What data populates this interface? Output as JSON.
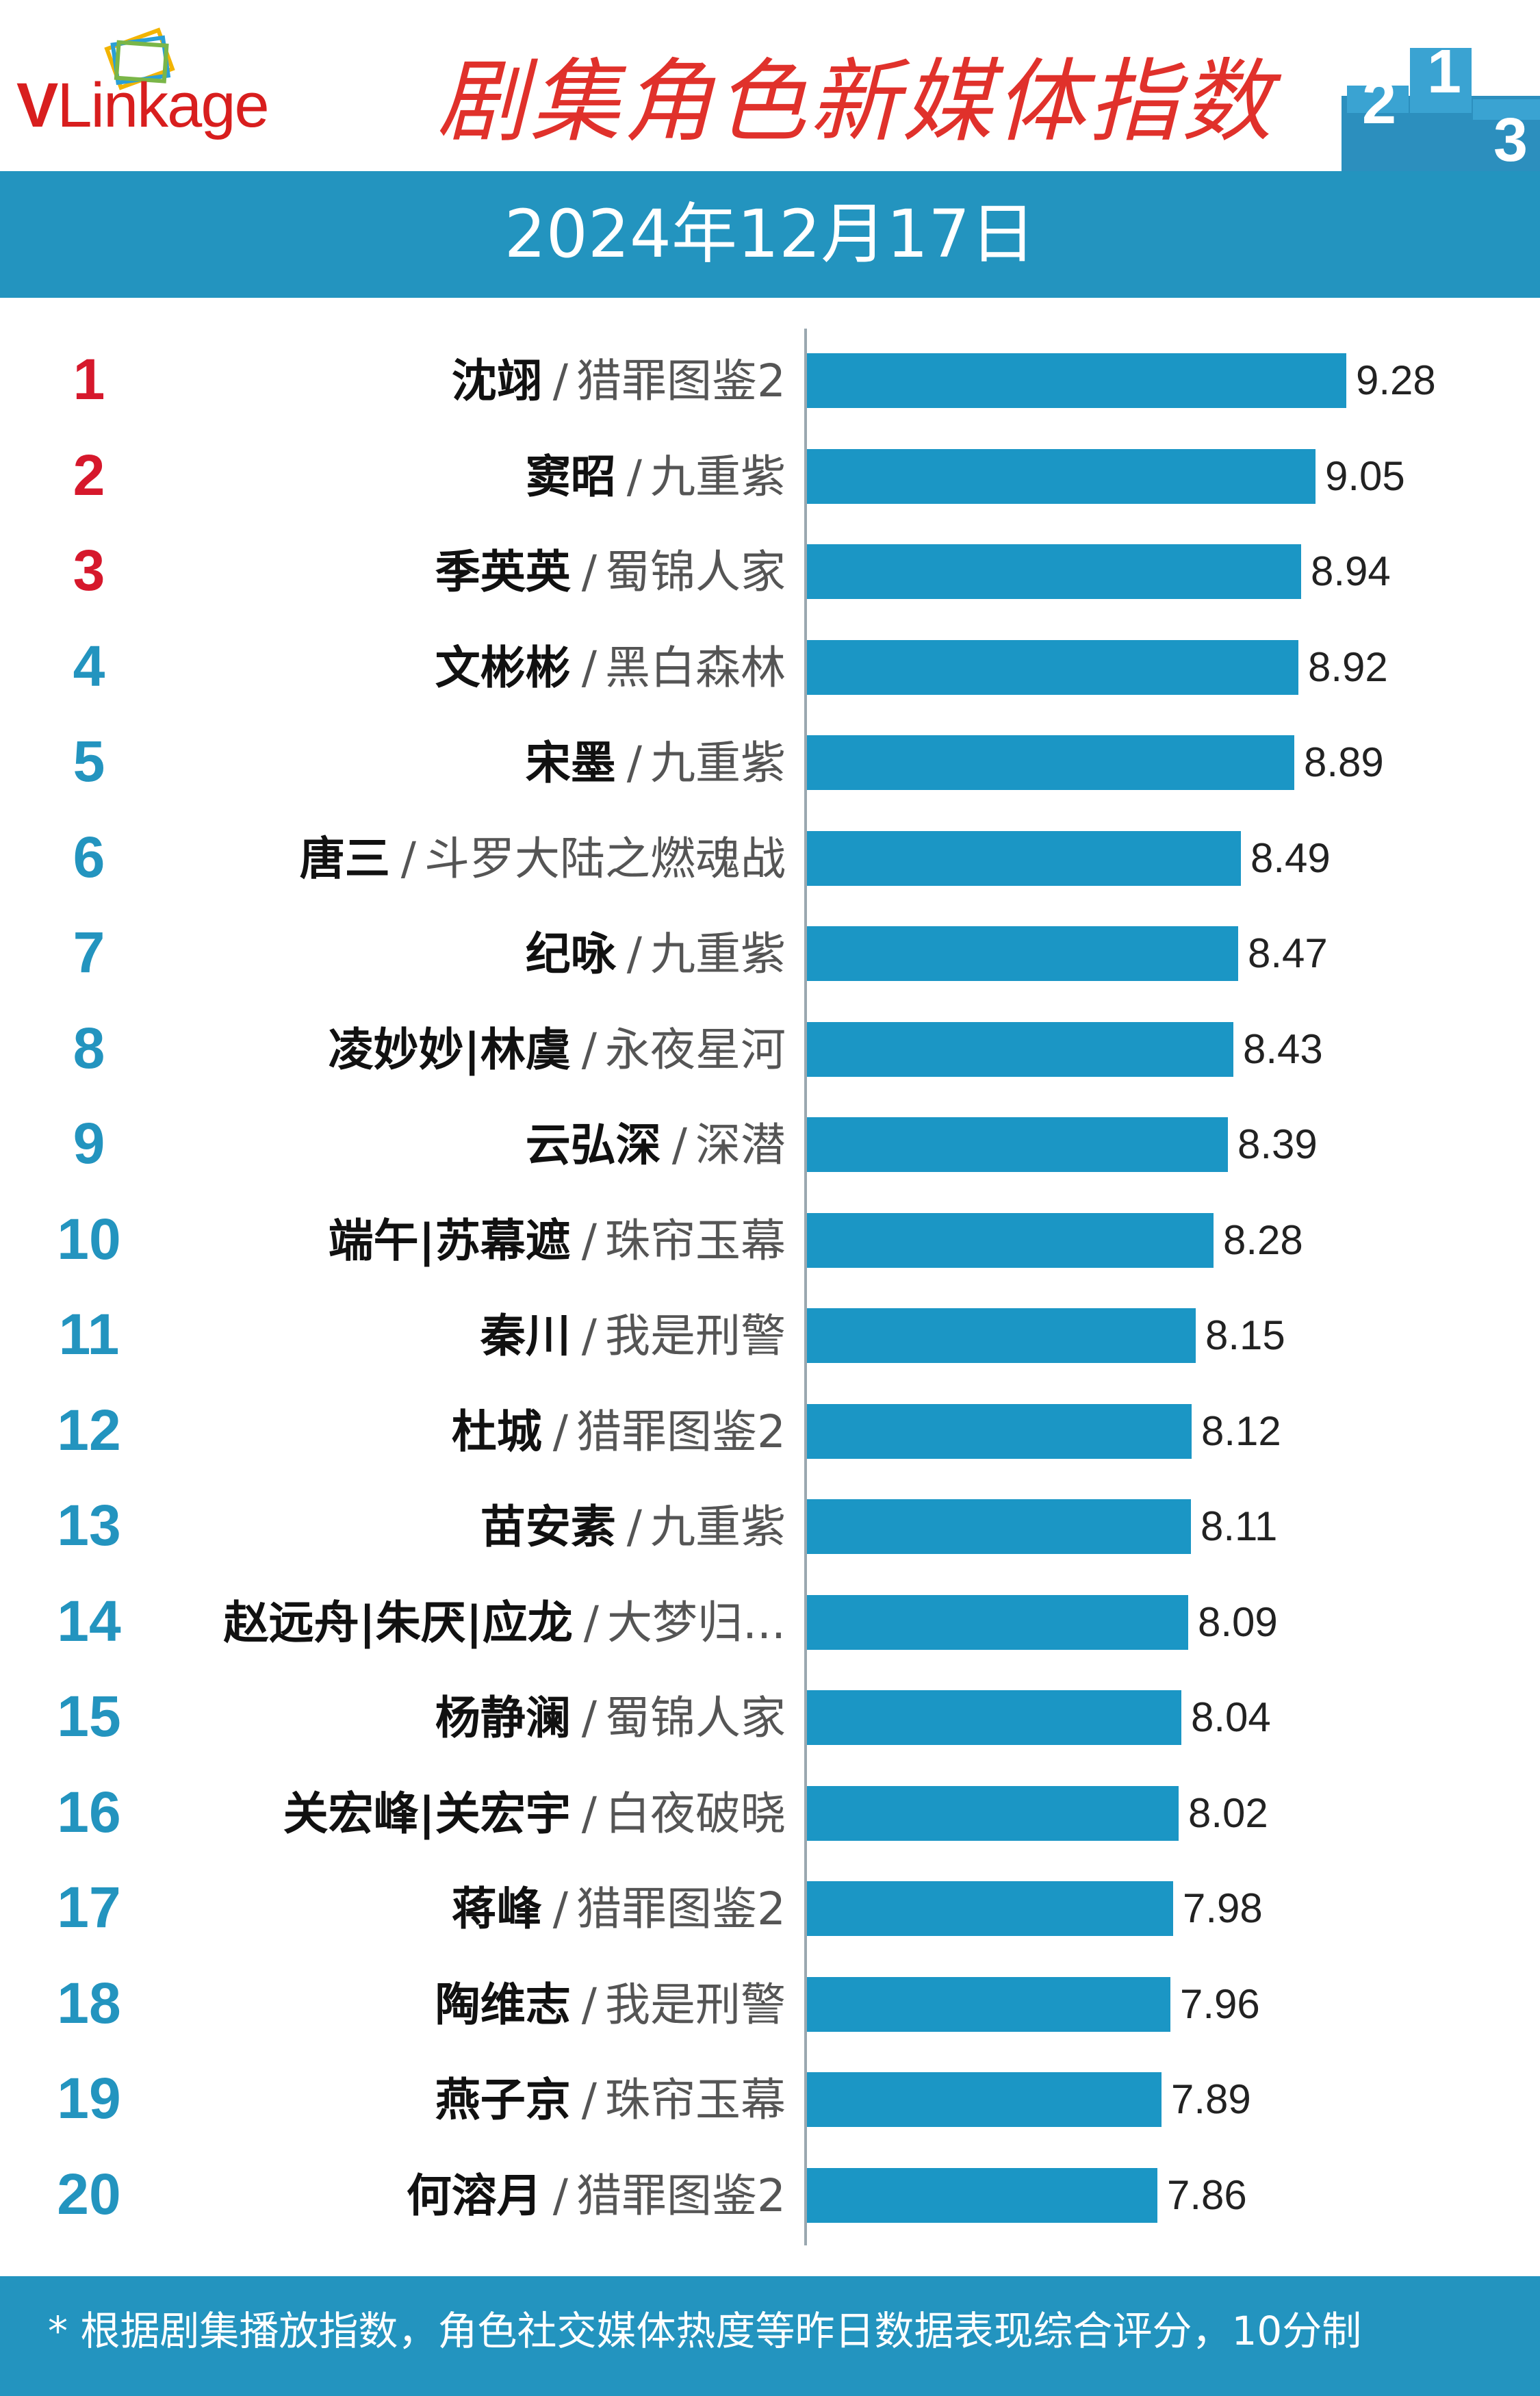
{
  "header": {
    "logo_v": "V",
    "logo_rest": "Linkage",
    "title": "剧集角色新媒体指数",
    "podium_labels": [
      "2",
      "1",
      "3"
    ]
  },
  "date_label": "2024年12月17日",
  "colors": {
    "accent": "#2394bf",
    "bar": "#1b96c5",
    "top_rank": "#d6182c",
    "title": "#e0312b"
  },
  "chart_data": {
    "type": "bar",
    "orientation": "horizontal",
    "title": "剧集角色新媒体指数",
    "grid": false,
    "items": [
      {
        "rank": "1",
        "character": "沈翊",
        "show": "猎罪图鉴2",
        "value": 9.28
      },
      {
        "rank": "2",
        "character": "窦昭",
        "show": "九重紫",
        "value": 9.05
      },
      {
        "rank": "3",
        "character": "季英英",
        "show": "蜀锦人家",
        "value": 8.94
      },
      {
        "rank": "4",
        "character": "文彬彬",
        "show": "黑白森林",
        "value": 8.92
      },
      {
        "rank": "5",
        "character": "宋墨",
        "show": "九重紫",
        "value": 8.89
      },
      {
        "rank": "6",
        "character": "唐三",
        "show": "斗罗大陆之燃魂战",
        "value": 8.49
      },
      {
        "rank": "7",
        "character": "纪咏",
        "show": "九重紫",
        "value": 8.47
      },
      {
        "rank": "8",
        "character": "凌妙妙|林虞",
        "show": "永夜星河",
        "value": 8.43
      },
      {
        "rank": "9",
        "character": "云弘深",
        "show": "深潜",
        "value": 8.39
      },
      {
        "rank": "10",
        "character": "端午|苏幕遮",
        "show": "珠帘玉幕",
        "value": 8.28
      },
      {
        "rank": "11",
        "character": "秦川",
        "show": "我是刑警",
        "value": 8.15
      },
      {
        "rank": "12",
        "character": "杜城",
        "show": "猎罪图鉴2",
        "value": 8.12
      },
      {
        "rank": "13",
        "character": "苗安素",
        "show": "九重紫",
        "value": 8.11
      },
      {
        "rank": "14",
        "character": "赵远舟|朱厌|应龙",
        "show": "大梦归...",
        "value": 8.09
      },
      {
        "rank": "15",
        "character": "杨静澜",
        "show": "蜀锦人家",
        "value": 8.04
      },
      {
        "rank": "16",
        "character": "关宏峰|关宏宇",
        "show": "白夜破晓",
        "value": 8.02
      },
      {
        "rank": "17",
        "character": "蒋峰",
        "show": "猎罪图鉴2",
        "value": 7.98
      },
      {
        "rank": "18",
        "character": "陶维志",
        "show": "我是刑警",
        "value": 7.96
      },
      {
        "rank": "19",
        "character": "燕子京",
        "show": "珠帘玉幕",
        "value": 7.89
      },
      {
        "rank": "20",
        "character": "何溶月",
        "show": "猎罪图鉴2",
        "value": 7.86
      }
    ]
  },
  "footer": {
    "note": "* 根据剧集播放指数，角色社交媒体热度等昨日数据表现综合评分，10分制"
  }
}
